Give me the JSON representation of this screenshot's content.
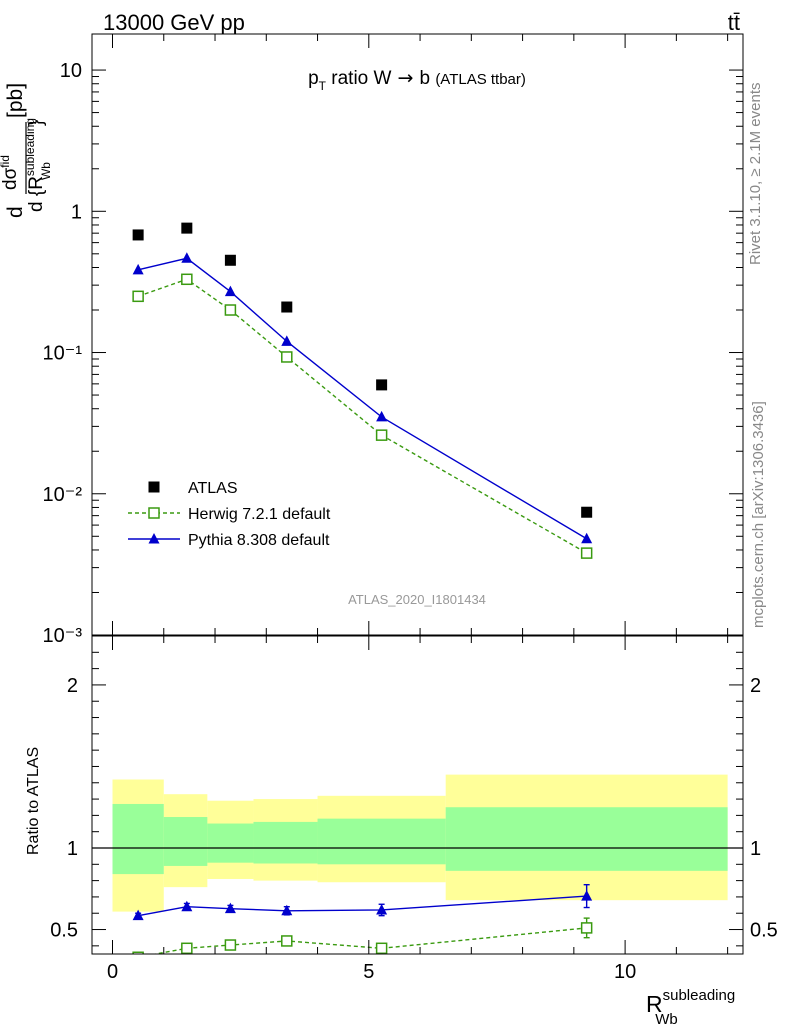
{
  "header": {
    "left": "13000 GeV pp",
    "right": "tt̄"
  },
  "side_labels": {
    "rivet": "Rivet 3.1.10, ≥ 2.1M events",
    "mcplots": "mcplots.cern.ch [arXiv:1306.3436]"
  },
  "chart_data": [
    {
      "type": "scatter",
      "panel": "main",
      "title": "p_T ratio W → b (ATLAS ttbar)",
      "analysis_label": "ATLAS_2020_I1801434",
      "ylabel": "dσ^fid / d{R_Wb^subleading} [pb]",
      "yscale": "log",
      "xlim": [
        -0.4,
        12.3
      ],
      "ylim": [
        0.001,
        18
      ],
      "y_tick_labels": [
        "10⁻³",
        "10⁻²",
        "10⁻¹",
        "1",
        "10"
      ],
      "legend_position": "bottom-left",
      "series": [
        {
          "name": "ATLAS",
          "marker": "square-filled",
          "color": "#000000",
          "x": [
            0.5,
            1.45,
            2.3,
            3.4,
            5.25,
            9.25
          ],
          "y": [
            0.68,
            0.76,
            0.45,
            0.21,
            0.059,
            0.0074
          ]
        },
        {
          "name": "Herwig 7.2.1 default",
          "marker": "square-open",
          "line": "dashed",
          "color": "#3a9a10",
          "x": [
            0.5,
            1.45,
            2.3,
            3.4,
            5.25,
            9.25
          ],
          "y": [
            0.25,
            0.33,
            0.2,
            0.093,
            0.026,
            0.0038
          ]
        },
        {
          "name": "Pythia 8.308 default",
          "marker": "triangle-filled",
          "line": "solid",
          "color": "#0000cc",
          "x": [
            0.5,
            1.45,
            2.3,
            3.4,
            5.25,
            9.25
          ],
          "y": [
            0.385,
            0.465,
            0.27,
            0.12,
            0.035,
            0.0048
          ]
        }
      ]
    },
    {
      "type": "scatter",
      "panel": "ratio",
      "ylabel": "Ratio to ATLAS",
      "xlabel": "R_Wb^subleading",
      "xlim": [
        -0.4,
        12.3
      ],
      "ylim": [
        0.35,
        2.3
      ],
      "x_tick_labels": [
        "0",
        "5",
        "10"
      ],
      "y_tick_labels": [
        "0.5",
        "1",
        "2"
      ],
      "bands": {
        "edges": [
          0,
          1,
          1.85,
          2.75,
          4.0,
          6.5,
          12
        ],
        "yellow_low": [
          0.61,
          0.76,
          0.81,
          0.8,
          0.79,
          0.68
        ],
        "yellow_high": [
          1.42,
          1.33,
          1.29,
          1.3,
          1.32,
          1.45
        ],
        "green_low": [
          0.84,
          0.89,
          0.91,
          0.905,
          0.9,
          0.86
        ],
        "green_high": [
          1.27,
          1.19,
          1.15,
          1.16,
          1.18,
          1.25
        ]
      },
      "series": [
        {
          "name": "Herwig 7.2.1 default",
          "color": "#3a9a10",
          "marker": "square-open",
          "line": "dashed",
          "x": [
            0.5,
            1.45,
            2.3,
            3.4,
            5.25,
            9.25
          ],
          "y": [
            0.33,
            0.385,
            0.405,
            0.43,
            0.385,
            0.51
          ],
          "err": [
            0,
            0.015,
            0.015,
            0.02,
            0.025,
            0.06
          ]
        },
        {
          "name": "Pythia 8.308 default",
          "color": "#0000cc",
          "marker": "triangle-filled",
          "line": "solid",
          "x": [
            0.5,
            1.45,
            2.3,
            3.4,
            5.25,
            9.25
          ],
          "y": [
            0.585,
            0.64,
            0.628,
            0.615,
            0.62,
            0.705
          ],
          "err": [
            0.015,
            0.02,
            0.02,
            0.025,
            0.035,
            0.07
          ]
        }
      ]
    }
  ]
}
